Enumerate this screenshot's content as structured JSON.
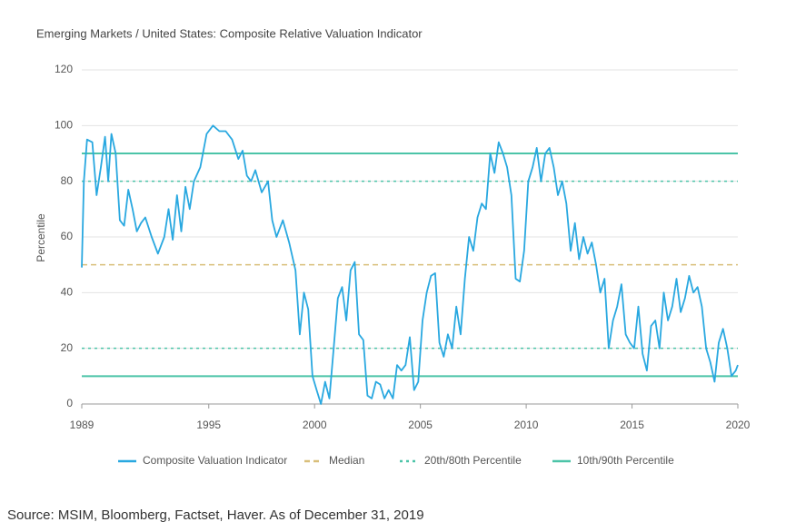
{
  "chart_data": {
    "type": "line",
    "title": "Emerging Markets / United States: Composite Relative Valuation Indicator",
    "y_label": "Percentile",
    "source": "Source: MSIM, Bloomberg, Factset, Haver. As of December 31, 2019",
    "xlim": [
      1989,
      2020
    ],
    "xticks": [
      1989,
      1995,
      2000,
      2005,
      2010,
      2015,
      2020
    ],
    "ylim": [
      0,
      120
    ],
    "yticks": [
      0,
      20,
      40,
      60,
      80,
      100,
      120
    ],
    "grid": true,
    "x": [
      1989.0,
      1989.1,
      1989.25,
      1989.5,
      1989.7,
      1989.9,
      1990.1,
      1990.25,
      1990.4,
      1990.6,
      1990.8,
      1991.0,
      1991.2,
      1991.4,
      1991.6,
      1991.8,
      1992.0,
      1992.3,
      1992.6,
      1992.9,
      1993.1,
      1993.3,
      1993.5,
      1993.7,
      1993.9,
      1994.1,
      1994.3,
      1994.6,
      1994.9,
      1995.2,
      1995.5,
      1995.8,
      1996.1,
      1996.4,
      1996.6,
      1996.8,
      1997.0,
      1997.2,
      1997.5,
      1997.8,
      1998.0,
      1998.2,
      1998.5,
      1998.8,
      1999.1,
      1999.3,
      1999.5,
      1999.7,
      1999.9,
      2000.1,
      2000.3,
      2000.5,
      2000.7,
      2000.9,
      2001.1,
      2001.3,
      2001.5,
      2001.7,
      2001.9,
      2002.1,
      2002.3,
      2002.5,
      2002.7,
      2002.9,
      2003.1,
      2003.3,
      2003.5,
      2003.7,
      2003.9,
      2004.1,
      2004.3,
      2004.5,
      2004.7,
      2004.9,
      2005.1,
      2005.3,
      2005.5,
      2005.7,
      2005.9,
      2006.1,
      2006.3,
      2006.5,
      2006.7,
      2006.9,
      2007.1,
      2007.3,
      2007.5,
      2007.7,
      2007.9,
      2008.1,
      2008.3,
      2008.5,
      2008.7,
      2008.9,
      2009.1,
      2009.3,
      2009.5,
      2009.7,
      2009.9,
      2010.1,
      2010.3,
      2010.5,
      2010.7,
      2010.9,
      2011.1,
      2011.3,
      2011.5,
      2011.7,
      2011.9,
      2012.1,
      2012.3,
      2012.5,
      2012.7,
      2012.9,
      2013.1,
      2013.3,
      2013.5,
      2013.7,
      2013.9,
      2014.1,
      2014.3,
      2014.5,
      2014.7,
      2014.9,
      2015.1,
      2015.3,
      2015.5,
      2015.7,
      2015.9,
      2016.1,
      2016.3,
      2016.5,
      2016.7,
      2016.9,
      2017.1,
      2017.3,
      2017.5,
      2017.7,
      2017.9,
      2018.1,
      2018.3,
      2018.5,
      2018.7,
      2018.9,
      2019.1,
      2019.3,
      2019.5,
      2019.7,
      2019.9,
      2020.0
    ],
    "series": [
      {
        "name": "Composite Valuation Indicator",
        "color": "#29a8e0",
        "values": [
          49,
          80,
          95,
          94,
          75,
          85,
          96,
          80,
          97,
          90,
          66,
          64,
          77,
          70,
          62,
          65,
          67,
          60,
          54,
          60,
          70,
          59,
          75,
          62,
          78,
          70,
          80,
          85,
          97,
          100,
          98,
          98,
          95,
          88,
          91,
          82,
          80,
          84,
          76,
          80,
          66,
          60,
          66,
          58,
          48,
          25,
          40,
          34,
          10,
          5,
          0,
          8,
          2,
          20,
          38,
          42,
          30,
          48,
          51,
          25,
          23,
          3,
          2,
          8,
          7,
          2,
          5,
          2,
          14,
          12,
          14,
          24,
          5,
          8,
          30,
          40,
          46,
          47,
          22,
          17,
          25,
          20,
          35,
          25,
          45,
          60,
          55,
          67,
          72,
          70,
          90,
          83,
          94,
          90,
          85,
          75,
          45,
          44,
          55,
          80,
          85,
          92,
          80,
          90,
          92,
          85,
          75,
          80,
          72,
          55,
          65,
          52,
          60,
          54,
          58,
          50,
          40,
          45,
          20,
          30,
          35,
          43,
          25,
          22,
          20,
          35,
          18,
          12,
          28,
          30,
          20,
          40,
          30,
          35,
          45,
          33,
          38,
          46,
          40,
          42,
          35,
          20,
          15,
          8,
          22,
          27,
          20,
          10,
          12,
          14
        ]
      }
    ],
    "reference_lines": [
      {
        "name": "Median",
        "values": [
          50
        ],
        "color": "#d9bf7a",
        "style": "dashed"
      },
      {
        "name": "20th/80th Percentile",
        "values": [
          20,
          80
        ],
        "color": "#4cc4a8",
        "style": "dotted"
      },
      {
        "name": "10th/90th Percentile",
        "values": [
          10,
          90
        ],
        "color": "#4cc4a8",
        "style": "solid"
      }
    ]
  }
}
